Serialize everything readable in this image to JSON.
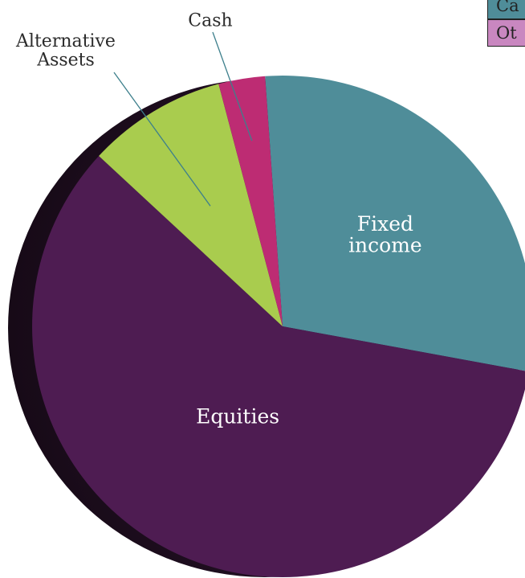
{
  "chart_data": {
    "type": "pie",
    "title": "",
    "slices": [
      {
        "label": "Fixed income",
        "value": 29,
        "color": "#4f8d99",
        "label_color": "#ffffff"
      },
      {
        "label": "Equities",
        "value": 59,
        "color": "#4e1c52",
        "label_color": "#ffffff"
      },
      {
        "label": "Alternative Assets",
        "value": 9,
        "color": "#a9cc4e",
        "label_color": "#2b2b2b"
      },
      {
        "label": "Cash",
        "value": 3,
        "color": "#bd2c73",
        "label_color": "#2b2b2b"
      }
    ],
    "legend": {
      "placement": "top-right",
      "entries": [
        {
          "label": "Ca",
          "color": "#4f8d99"
        },
        {
          "label": "Ot",
          "color": "#c987c0"
        }
      ]
    }
  }
}
